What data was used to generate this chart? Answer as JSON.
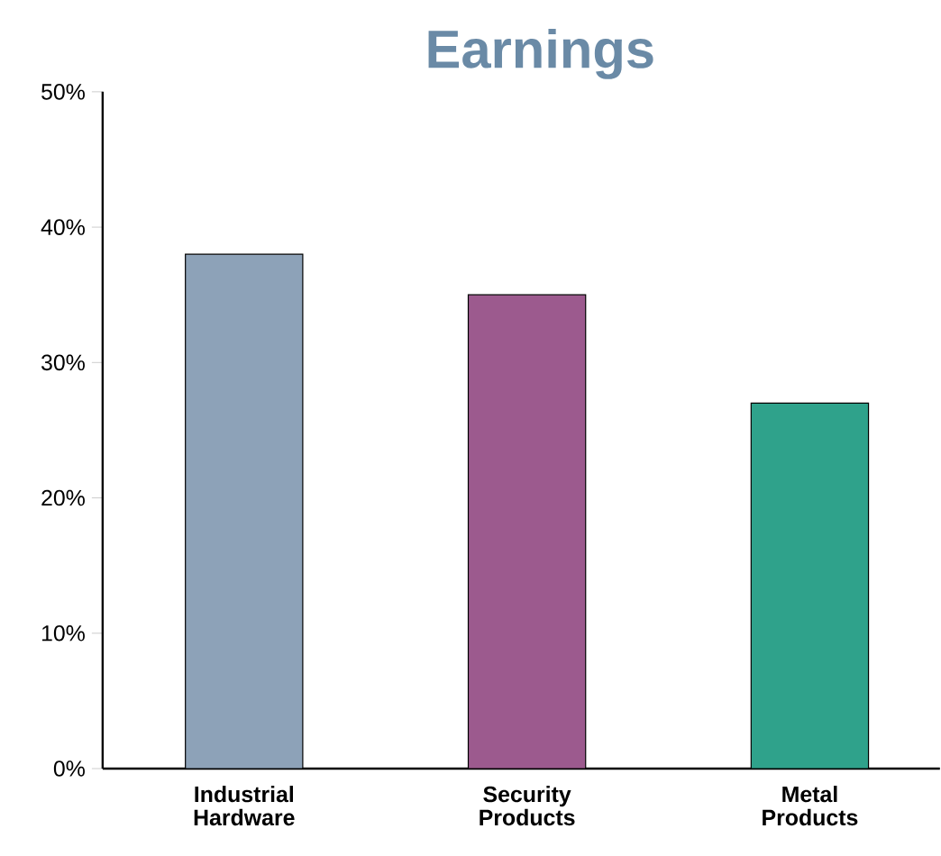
{
  "chart_data": {
    "type": "bar",
    "title": "Earnings",
    "categories": [
      "Industrial Hardware",
      "Security Products",
      "Metal Products"
    ],
    "values": [
      38,
      35,
      27
    ],
    "colors": [
      "#8da2b8",
      "#9c5a8e",
      "#2fa28b"
    ],
    "ylim": [
      0,
      50
    ],
    "yticks": [
      {
        "value": 0,
        "label": "0%"
      },
      {
        "value": 10,
        "label": "10%"
      },
      {
        "value": 20,
        "label": "20%"
      },
      {
        "value": 30,
        "label": "30%"
      },
      {
        "value": 40,
        "label": "40%"
      },
      {
        "value": 50,
        "label": "50%"
      }
    ],
    "grid": false
  }
}
